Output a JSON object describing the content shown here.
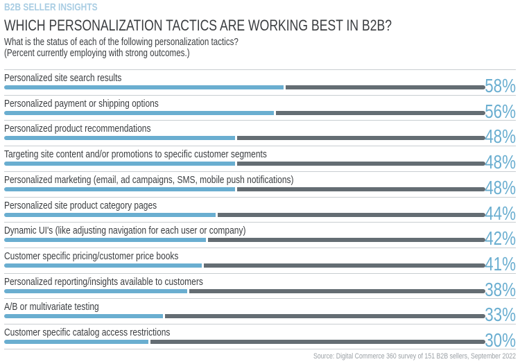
{
  "header": {
    "kicker": "B2B SELLER INSIGHTS",
    "title": "WHICH PERSONALIZATION TACTICS ARE WORKING BEST IN B2B?",
    "subtitle_line1": "What is the status of each of the following personalization tactics?",
    "subtitle_line2": "(Percent currently employing with strong outcomes.)"
  },
  "chart_data": {
    "type": "bar",
    "orientation": "horizontal",
    "title": "WHICH PERSONALIZATION TACTICS ARE WORKING BEST IN B2B?",
    "xlim": [
      0,
      100
    ],
    "grid": false,
    "categories": [
      "Personalized site search results",
      "Personalized payment or shipping options",
      "Personalized product recommendations",
      "Targeting site content and/or promotions to specific customer segments",
      "Personalized marketing (email, ad campaigns, SMS, mobile push notifications)",
      "Personalized site product category pages",
      "Dynamic UI's (like adjusting navigation for each user or company)",
      "Customer specific pricing/customer price books",
      "Personalized reporting/insights available to customers",
      "A/B or multivariate testing",
      "Customer specific catalog access restrictions"
    ],
    "values": [
      58,
      56,
      48,
      48,
      48,
      44,
      42,
      41,
      38,
      33,
      30
    ],
    "value_labels": [
      "58%",
      "56%",
      "48%",
      "48%",
      "48%",
      "44%",
      "42%",
      "41%",
      "38%",
      "33%",
      "30%"
    ],
    "colors": {
      "value": "#6aaed0",
      "remainder": "#646d73",
      "kicker": "#a9cde3"
    }
  },
  "footer": {
    "source": "Source: Digital Commerce 360 survey of 151 B2B sellers, September 2022"
  }
}
